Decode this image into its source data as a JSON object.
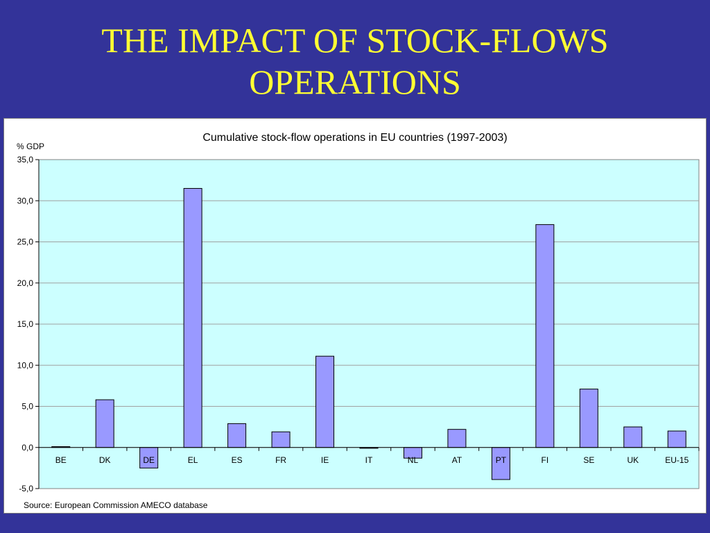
{
  "slide": {
    "title_line1": "THE IMPACT OF STOCK-FLOWS",
    "title_line2": "OPERATIONS"
  },
  "colors": {
    "background": "#333399",
    "title": "#ffff33",
    "plot_area": "#ccffff",
    "bar_fill": "#9999ff",
    "gridline": "#a0a0a0"
  },
  "chart_data": {
    "type": "bar",
    "title": "Cumulative stock-flow operations in EU countries (1997-2003)",
    "ylabel": "% GDP",
    "xlabel": "",
    "source": "Source: European Commission AMECO database",
    "categories": [
      "BE",
      "DK",
      "DE",
      "EL",
      "ES",
      "FR",
      "IE",
      "IT",
      "NL",
      "AT",
      "PT",
      "FI",
      "SE",
      "UK",
      "EU-15"
    ],
    "values": [
      0.1,
      5.8,
      -2.5,
      31.5,
      2.9,
      1.9,
      11.1,
      -0.1,
      -1.3,
      2.2,
      -3.9,
      27.1,
      7.1,
      2.5,
      2.0
    ],
    "ylim": [
      -5,
      35
    ],
    "yticks": [
      -5,
      0,
      5,
      10,
      15,
      20,
      25,
      30,
      35
    ],
    "ytick_labels": [
      "-5,0",
      "0,0",
      "5,0",
      "10,0",
      "15,0",
      "20,0",
      "25,0",
      "30,0",
      "35,0"
    ],
    "grid": true,
    "legend": "none"
  }
}
